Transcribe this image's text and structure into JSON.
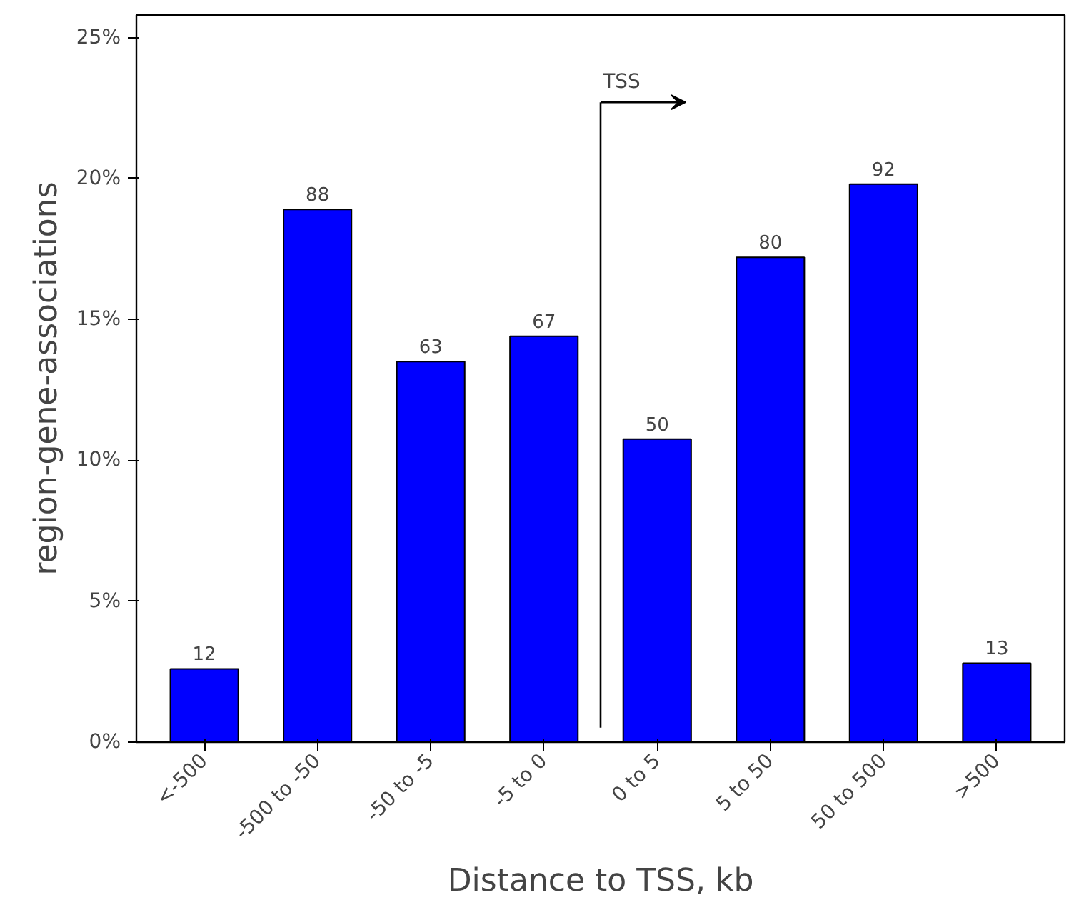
{
  "chart_data": {
    "type": "bar",
    "xlabel": "Distance to TSS, kb",
    "ylabel": "region-gene-associations",
    "categories": [
      "<-500",
      "-500 to -50",
      "-50 to -5",
      "-5 to 0",
      "0 to 5",
      "5 to 50",
      "50 to 500",
      ">500"
    ],
    "values": [
      2.6,
      18.9,
      13.5,
      14.4,
      10.75,
      17.2,
      19.8,
      2.8
    ],
    "color": "#0000ff",
    "ylim": [
      0,
      25.8
    ],
    "yticks": [
      {
        "value": 0,
        "label": "0%"
      },
      {
        "value": 5,
        "label": "5%"
      },
      {
        "value": 10,
        "label": "10%"
      },
      {
        "value": 15,
        "label": "15%"
      },
      {
        "value": 20,
        "label": "20%"
      },
      {
        "value": 25,
        "label": "25%"
      }
    ],
    "annotations": [
      "TSS",
      {
        "text": "12",
        "x": "<-500",
        "y": 2.6
      },
      {
        "text": "88",
        "x": "-500 to -50",
        "y": 18.9
      },
      {
        "text": "63",
        "x": "-50 to -5",
        "y": 13.5
      },
      {
        "text": "67",
        "x": "-5 to 0",
        "y": 14.4
      },
      {
        "text": "50",
        "x": "0 to 5",
        "y": 10.75
      },
      {
        "text": "80",
        "x": "5 to 50",
        "y": 17.2
      },
      {
        "text": "92",
        "x": "50 to 500",
        "y": 19.8
      },
      {
        "text": "13",
        "x": ">500",
        "y": 2.8
      }
    ],
    "grid": false
  }
}
